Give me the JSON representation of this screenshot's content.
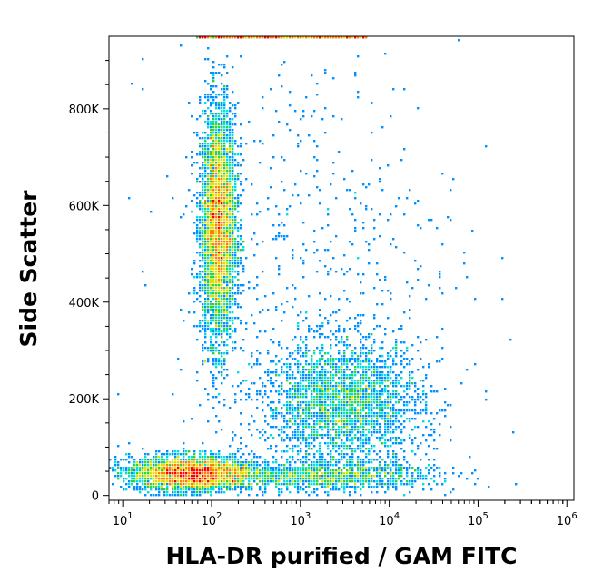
{
  "chart_data": {
    "type": "scatter",
    "title": "",
    "xlabel": "HLA-DR purified / GAM FITC",
    "ylabel": "Side Scatter",
    "x_scale": "log",
    "xlim": [
      7,
      1200000
    ],
    "ylim": [
      -10000,
      950000
    ],
    "grid": false,
    "colormap": [
      "#0000ff",
      "#0090ff",
      "#00e0e0",
      "#30d040",
      "#e0e000",
      "#ff8000",
      "#ff0000"
    ],
    "x_ticks": [
      {
        "base": "10",
        "exp": "1",
        "value": 10
      },
      {
        "base": "10",
        "exp": "2",
        "value": 100
      },
      {
        "base": "10",
        "exp": "3",
        "value": 1000
      },
      {
        "base": "10",
        "exp": "4",
        "value": 10000
      },
      {
        "base": "10",
        "exp": "5",
        "value": 100000
      },
      {
        "base": "10",
        "exp": "6",
        "value": 1000000
      }
    ],
    "y_ticks": [
      {
        "label": "0",
        "value": 0
      },
      {
        "label": "200K",
        "value": 200000
      },
      {
        "label": "400K",
        "value": 400000
      },
      {
        "label": "600K",
        "value": 600000
      },
      {
        "label": "800K",
        "value": 800000
      }
    ],
    "populations": [
      {
        "x_center": 120,
        "y_center": 560000,
        "x_log_spread": 0.1,
        "y_spread": 120000,
        "count": 4500
      },
      {
        "x_center": 60,
        "y_center": 45000,
        "x_log_spread": 0.35,
        "y_spread": 18000,
        "count": 3500
      },
      {
        "x_center": 3000,
        "y_center": 190000,
        "x_log_spread": 0.45,
        "y_spread": 65000,
        "count": 2800
      },
      {
        "x_center": 2000,
        "y_center": 40000,
        "x_log_spread": 0.6,
        "y_spread": 15000,
        "count": 1200
      },
      {
        "x_center": 1500,
        "y_center": 500000,
        "x_log_spread": 0.8,
        "y_spread": 220000,
        "count": 500
      }
    ]
  }
}
